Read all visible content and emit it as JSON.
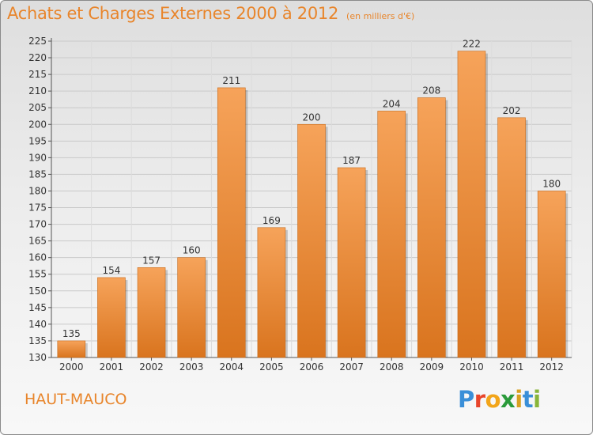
{
  "header": {
    "title": "Achats et Charges Externes 2000 à 2012",
    "unit": "(en milliers d'€)"
  },
  "footer": {
    "commune": "HAUT-MAUCO",
    "logo_letters": [
      "P",
      "r",
      "o",
      "x",
      "i",
      "t",
      "i"
    ]
  },
  "colors": {
    "bar_light": "#f6a35a",
    "bar_dark": "#d9741e",
    "title": "#e8852b"
  },
  "chart_data": {
    "type": "bar",
    "title": "Achats et Charges Externes 2000 à 2012",
    "subtitle": "(en milliers d'€)",
    "categories": [
      "2000",
      "2001",
      "2002",
      "2003",
      "2004",
      "2005",
      "2006",
      "2007",
      "2008",
      "2009",
      "2010",
      "2011",
      "2012"
    ],
    "values": [
      135,
      154,
      157,
      160,
      211,
      169,
      200,
      187,
      204,
      208,
      222,
      202,
      180
    ],
    "ylim": [
      130,
      225
    ],
    "yticks": [
      130,
      135,
      140,
      145,
      150,
      155,
      160,
      165,
      170,
      175,
      180,
      185,
      190,
      195,
      200,
      205,
      210,
      215,
      220,
      225
    ],
    "grid": true,
    "legend": "none"
  }
}
